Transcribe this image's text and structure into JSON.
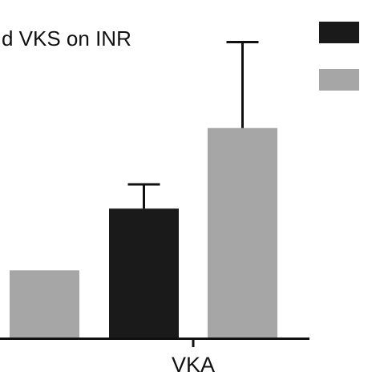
{
  "chart_data": {
    "type": "bar",
    "title": "d VKS on INR",
    "xlabel": "",
    "ylabel": "",
    "categories": [
      "",
      "VKA"
    ],
    "ylim": [
      0,
      100
    ],
    "grid": false,
    "legend_placement": "top-right",
    "series": [
      {
        "values": [
          null,
          48
        ],
        "errors": [
          null,
          9
        ],
        "color": "#1a1a1a"
      },
      {
        "values": [
          25,
          78
        ],
        "errors": [
          null,
          32
        ],
        "color": "#a6a6a6"
      }
    ]
  }
}
